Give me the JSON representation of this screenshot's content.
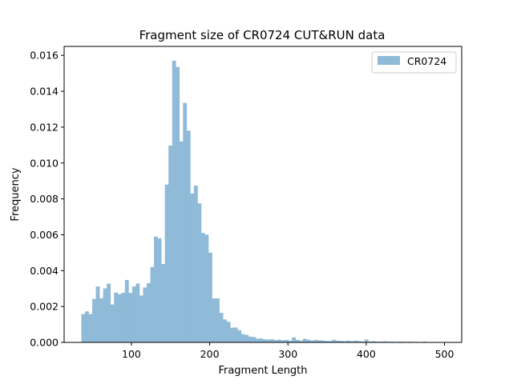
{
  "chart_data": {
    "type": "bar",
    "title": "Fragment size of CR0724 CUT&RUN data",
    "xlabel": "Fragment Length",
    "ylabel": "Frequency",
    "xlim": [
      14,
      522
    ],
    "ylim": [
      0,
      0.0165
    ],
    "xticks": [
      100,
      200,
      300,
      400,
      500
    ],
    "xtick_labels": [
      "100",
      "200",
      "300",
      "400",
      "500"
    ],
    "yticks": [
      0,
      0.002,
      0.004,
      0.006,
      0.008,
      0.01,
      0.012,
      0.014,
      0.016
    ],
    "ytick_labels": [
      "0.000",
      "0.002",
      "0.004",
      "0.006",
      "0.008",
      "0.010",
      "0.012",
      "0.014",
      "0.016"
    ],
    "grid": false,
    "legend_position": "top-right",
    "bin_start": 36,
    "bin_width": 4.64,
    "bar_color": "#8fbad8",
    "series": [
      {
        "name": "CR0724",
        "values": [
          0.00158,
          0.00173,
          0.00158,
          0.00242,
          0.00312,
          0.00246,
          0.00301,
          0.00328,
          0.00211,
          0.00278,
          0.00269,
          0.00276,
          0.00348,
          0.00276,
          0.00312,
          0.00328,
          0.00261,
          0.00306,
          0.0033,
          0.0042,
          0.0059,
          0.0058,
          0.00437,
          0.0088,
          0.01097,
          0.0157,
          0.01535,
          0.0112,
          0.01335,
          0.0118,
          0.0083,
          0.00874,
          0.00775,
          0.0061,
          0.006,
          0.005,
          0.00245,
          0.00245,
          0.00165,
          0.00128,
          0.00115,
          0.00082,
          0.00083,
          0.00068,
          0.00046,
          0.00042,
          0.00032,
          0.0003,
          0.00021,
          0.00022,
          0.00017,
          0.00016,
          0.00018,
          0.00013,
          0.00015,
          0.00012,
          0.00014,
          0.0001,
          0.00028,
          0.00014,
          0.0001,
          0.0002,
          0.00015,
          0.0001,
          0.00014,
          0.00012,
          0.00011,
          8e-05,
          8e-05,
          0.00014,
          0.0001,
          9e-05,
          7e-05,
          0.0001,
          7e-05,
          0.0001,
          7e-05,
          5e-05,
          0.00016,
          5e-05,
          7e-05,
          4e-05,
          4e-05,
          6e-05,
          4e-05,
          4e-05,
          3e-05,
          4e-05,
          4e-05,
          3e-05,
          4e-05,
          3e-05,
          3e-05,
          2e-05,
          4e-05,
          2e-05,
          2e-05,
          2e-05,
          2e-05,
          2e-05
        ]
      }
    ]
  }
}
